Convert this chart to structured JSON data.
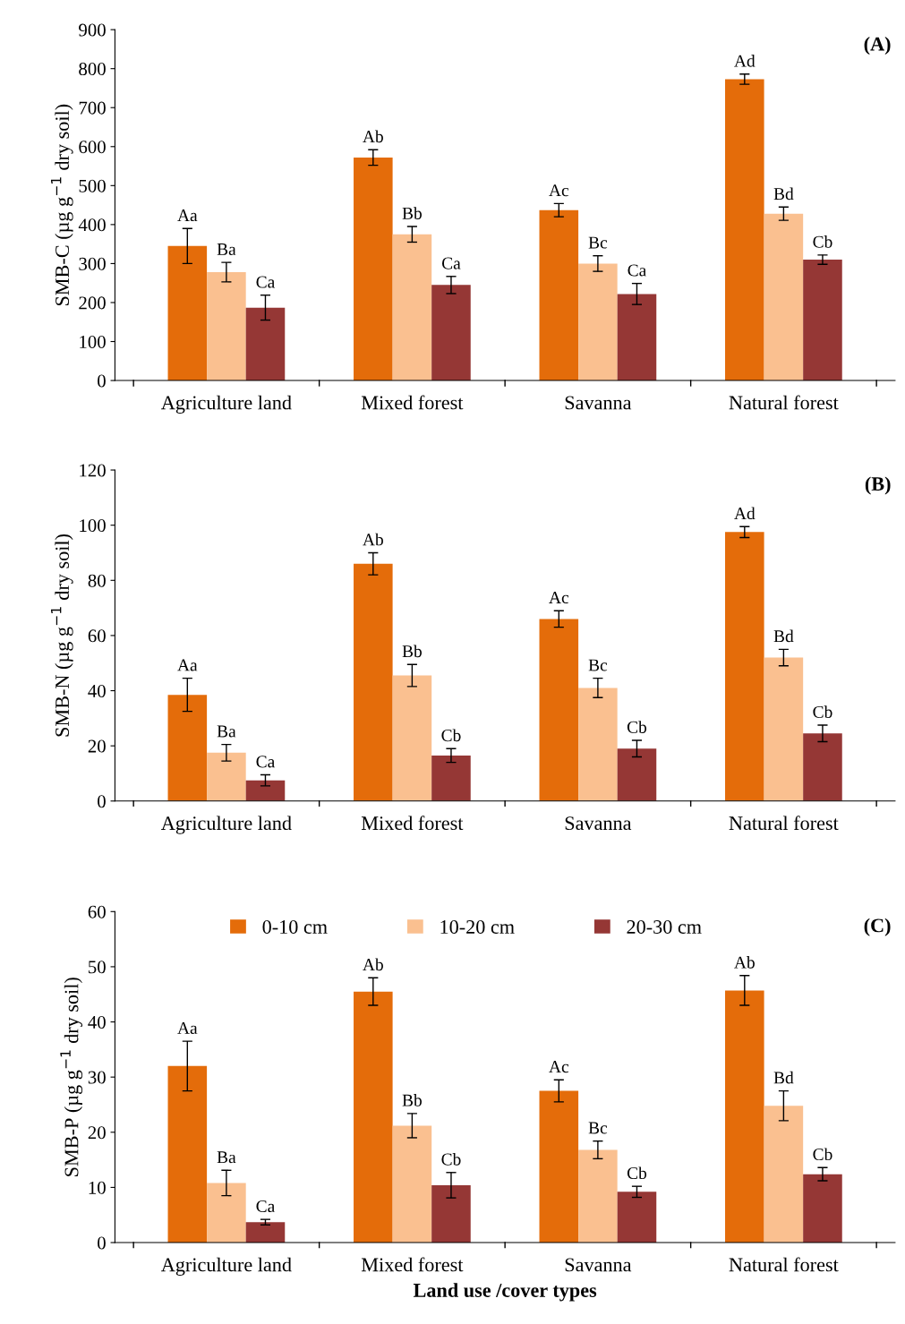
{
  "chart_data": [
    {
      "type": "bar",
      "title": "(A)",
      "ylabel": "SMB-C (µg g$^{−1}$ dry soil)",
      "categories": [
        "Agriculture land",
        "Mixed forest",
        "Savanna",
        "Natural forest"
      ],
      "ylim": [
        0,
        900
      ],
      "yticks": [
        0,
        100,
        200,
        300,
        400,
        500,
        600,
        700,
        800,
        900
      ],
      "grid": false,
      "legend": false,
      "series": [
        {
          "color": "#e46c0a",
          "values": [
            345,
            572,
            437,
            773
          ],
          "errors": [
            45,
            20,
            17,
            13
          ],
          "value_labels": [
            "Aa",
            "Ab",
            "Ac",
            "Ad"
          ]
        },
        {
          "color": "#fac090",
          "values": [
            278,
            375,
            300,
            428
          ],
          "errors": [
            25,
            20,
            20,
            17
          ],
          "value_labels": [
            "Ba",
            "Bb",
            "Bc",
            "Bd"
          ]
        },
        {
          "color": "#953735",
          "values": [
            187,
            245,
            222,
            310
          ],
          "errors": [
            32,
            22,
            27,
            12
          ],
          "value_labels": [
            "Ca",
            "Ca",
            "Ca",
            "Cb"
          ]
        }
      ]
    },
    {
      "type": "bar",
      "title": "(B)",
      "ylabel": "SMB-N (µg g$^{−1}$ dry soil)",
      "categories": [
        "Agriculture land",
        "Mixed forest",
        "Savanna",
        "Natural forest"
      ],
      "ylim": [
        0,
        120
      ],
      "yticks": [
        0,
        20,
        40,
        60,
        80,
        100,
        120
      ],
      "grid": false,
      "legend": false,
      "series": [
        {
          "color": "#e46c0a",
          "values": [
            38.5,
            86,
            66,
            97.5
          ],
          "errors": [
            6,
            4,
            3,
            2
          ],
          "value_labels": [
            "Aa",
            "Ab",
            "Ac",
            "Ad"
          ]
        },
        {
          "color": "#fac090",
          "values": [
            17.5,
            45.5,
            41,
            52
          ],
          "errors": [
            3,
            4,
            3.5,
            3
          ],
          "value_labels": [
            "Ba",
            "Bb",
            "Bc",
            "Bd"
          ]
        },
        {
          "color": "#953735",
          "values": [
            7.5,
            16.5,
            19,
            24.5
          ],
          "errors": [
            2,
            2.5,
            3,
            3
          ],
          "value_labels": [
            "Ca",
            "Cb",
            "Cb",
            "Cb"
          ]
        }
      ]
    },
    {
      "type": "bar",
      "title": "(C)",
      "ylabel": "SMB-P (µg g$^{−1}$ dry soil)",
      "xlabel": "Land use /cover types",
      "categories": [
        "Agriculture land",
        "Mixed forest",
        "Savanna",
        "Natural forest"
      ],
      "ylim": [
        0,
        60
      ],
      "yticks": [
        0,
        10,
        20,
        30,
        40,
        50,
        60
      ],
      "grid": false,
      "legend": "top",
      "series": [
        {
          "name": "0-10 cm",
          "color": "#e46c0a",
          "values": [
            32,
            45.5,
            27.5,
            45.7
          ],
          "errors": [
            4.5,
            2.5,
            2,
            2.7
          ],
          "value_labels": [
            "Aa",
            "Ab",
            "Ac",
            "Ab"
          ]
        },
        {
          "name": "10-20 cm",
          "color": "#fac090",
          "values": [
            10.8,
            21.2,
            16.8,
            24.8
          ],
          "errors": [
            2.3,
            2.2,
            1.6,
            2.7
          ],
          "value_labels": [
            "Ba",
            "Bb",
            "Bc",
            "Bd"
          ]
        },
        {
          "name": "20-30 cm",
          "color": "#953735",
          "values": [
            3.7,
            10.4,
            9.2,
            12.4
          ],
          "errors": [
            0.5,
            2.3,
            1,
            1.2
          ],
          "value_labels": [
            "Ca",
            "Cb",
            "Cb",
            "Cb"
          ]
        }
      ]
    }
  ]
}
